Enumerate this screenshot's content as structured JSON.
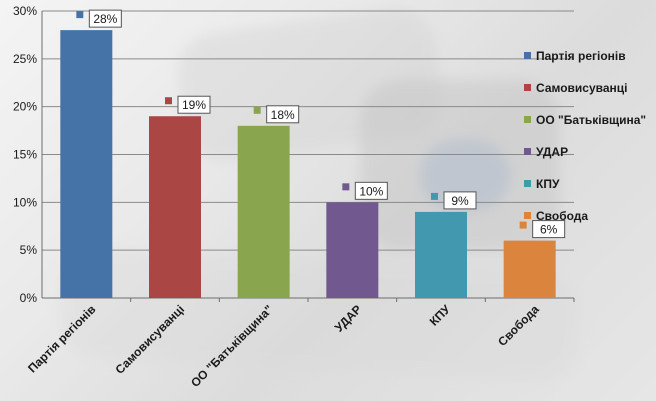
{
  "chart_data": {
    "type": "bar",
    "categories": [
      "Партія регіонів",
      "Самовисуванці",
      "ОО \"Батьківщина\"",
      "УДАР",
      "КПУ",
      "Свобода"
    ],
    "values": [
      28,
      19,
      18,
      10,
      9,
      6
    ],
    "value_labels": [
      "28%",
      "19%",
      "18%",
      "10%",
      "9%",
      "6%"
    ],
    "colors": [
      "#4573a7",
      "#aa4643",
      "#89a54e",
      "#71588f",
      "#4198af",
      "#db843d"
    ],
    "ylim": [
      0,
      30
    ],
    "yticks": [
      0,
      5,
      10,
      15,
      20,
      25,
      30
    ],
    "ytick_labels": [
      "0%",
      "5%",
      "10%",
      "15%",
      "20%",
      "25%",
      "30%"
    ],
    "grid": true,
    "legend": {
      "placement": "right",
      "entries": [
        "Партія регіонів",
        "Самовисуванці",
        "ОО \"Батьківщина\"",
        "УДАР",
        "КПУ",
        "Свобода"
      ]
    }
  }
}
